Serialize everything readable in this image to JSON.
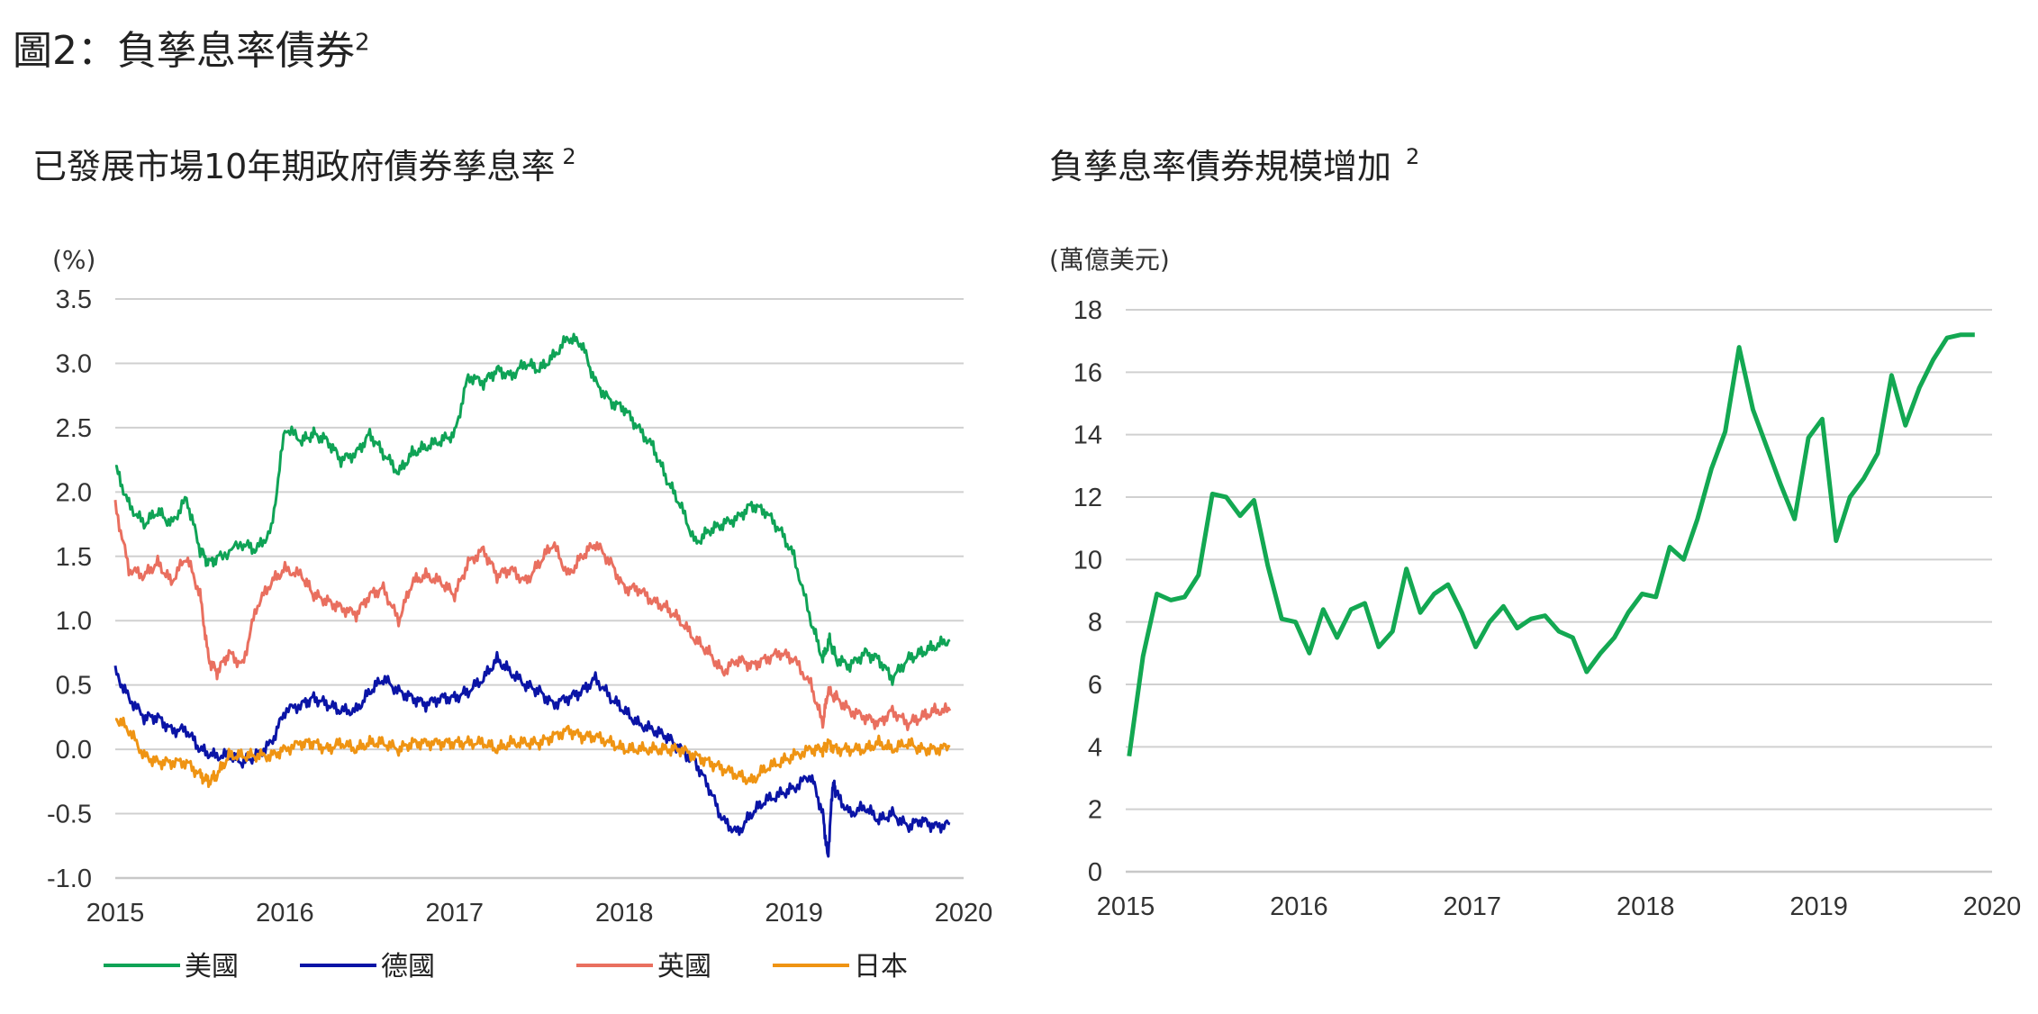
{
  "main_title": "圖2：負孳息率債券",
  "main_title_sup": "2",
  "chart_data": [
    {
      "type": "line",
      "title": "已發展市場10年期政府債券孳息率",
      "title_sup": "2",
      "unit": "(%)",
      "ylim": [
        -1.0,
        3.5
      ],
      "yticks": [
        "3.5",
        "3.0",
        "2.5",
        "2.0",
        "1.5",
        "1.0",
        "0.5",
        "0.0",
        "-0.5",
        "-1.0"
      ],
      "xlim": [
        2015,
        2020
      ],
      "xticks": [
        "2015",
        "2016",
        "2017",
        "2018",
        "2019",
        "2020"
      ],
      "grid": true,
      "legend_position": "bottom",
      "series": [
        {
          "name": "美國",
          "color": "#0fa356",
          "x": [
            2015.0,
            2015.08,
            2015.17,
            2015.25,
            2015.33,
            2015.42,
            2015.5,
            2015.55,
            2015.62,
            2015.75,
            2015.83,
            2015.92,
            2016.0,
            2016.1,
            2016.17,
            2016.25,
            2016.33,
            2016.42,
            2016.5,
            2016.58,
            2016.67,
            2016.75,
            2016.83,
            2016.92,
            2017.0,
            2017.08,
            2017.17,
            2017.25,
            2017.33,
            2017.42,
            2017.5,
            2017.58,
            2017.67,
            2017.75,
            2017.83,
            2017.92,
            2018.0,
            2018.08,
            2018.17,
            2018.25,
            2018.33,
            2018.42,
            2018.5,
            2018.58,
            2018.67,
            2018.75,
            2018.83,
            2018.92,
            2019.0,
            2019.1,
            2019.17,
            2019.21,
            2019.25,
            2019.33,
            2019.42,
            2019.5,
            2019.58,
            2019.67,
            2019.75,
            2019.83,
            2019.92
          ],
          "y": [
            2.2,
            1.9,
            1.75,
            1.85,
            1.75,
            1.95,
            1.55,
            1.45,
            1.5,
            1.6,
            1.55,
            1.7,
            2.5,
            2.4,
            2.45,
            2.4,
            2.25,
            2.3,
            2.45,
            2.3,
            2.15,
            2.3,
            2.35,
            2.4,
            2.45,
            2.9,
            2.85,
            2.95,
            2.9,
            3.0,
            2.95,
            3.05,
            3.2,
            3.15,
            2.85,
            2.7,
            2.65,
            2.5,
            2.35,
            2.1,
            1.9,
            1.6,
            1.7,
            1.75,
            1.8,
            1.9,
            1.85,
            1.7,
            1.5,
            1.0,
            0.7,
            0.85,
            0.7,
            0.65,
            0.75,
            0.7,
            0.55,
            0.7,
            0.75,
            0.8,
            0.85
          ]
        },
        {
          "name": "德國",
          "color": "#0a14a6",
          "x": [
            2015.0,
            2015.08,
            2015.17,
            2015.25,
            2015.33,
            2015.42,
            2015.5,
            2015.58,
            2015.67,
            2015.75,
            2015.83,
            2015.92,
            2016.0,
            2016.1,
            2016.17,
            2016.25,
            2016.33,
            2016.42,
            2016.5,
            2016.58,
            2016.67,
            2016.75,
            2016.83,
            2016.92,
            2017.0,
            2017.08,
            2017.17,
            2017.25,
            2017.33,
            2017.42,
            2017.5,
            2017.58,
            2017.67,
            2017.75,
            2017.83,
            2017.92,
            2018.0,
            2018.08,
            2018.17,
            2018.25,
            2018.33,
            2018.42,
            2018.5,
            2018.58,
            2018.67,
            2018.75,
            2018.83,
            2018.92,
            2019.0,
            2019.1,
            2019.17,
            2019.2,
            2019.23,
            2019.25,
            2019.33,
            2019.42,
            2019.5,
            2019.58,
            2019.67,
            2019.75,
            2019.83,
            2019.92
          ],
          "y": [
            0.6,
            0.4,
            0.25,
            0.25,
            0.15,
            0.15,
            0.0,
            -0.05,
            -0.05,
            -0.1,
            -0.05,
            0.05,
            0.3,
            0.35,
            0.4,
            0.35,
            0.3,
            0.3,
            0.45,
            0.55,
            0.45,
            0.4,
            0.35,
            0.4,
            0.4,
            0.45,
            0.55,
            0.7,
            0.6,
            0.5,
            0.45,
            0.35,
            0.4,
            0.45,
            0.55,
            0.4,
            0.3,
            0.2,
            0.15,
            0.1,
            0.0,
            -0.1,
            -0.3,
            -0.55,
            -0.65,
            -0.5,
            -0.4,
            -0.35,
            -0.3,
            -0.2,
            -0.5,
            -0.85,
            -0.25,
            -0.35,
            -0.5,
            -0.45,
            -0.55,
            -0.5,
            -0.6,
            -0.55,
            -0.6,
            -0.58
          ]
        },
        {
          "name": "英國",
          "color": "#e96f5f",
          "x": [
            2015.0,
            2015.08,
            2015.17,
            2015.25,
            2015.33,
            2015.42,
            2015.5,
            2015.55,
            2015.6,
            2015.67,
            2015.75,
            2015.83,
            2015.92,
            2016.0,
            2016.1,
            2016.17,
            2016.25,
            2016.33,
            2016.42,
            2016.5,
            2016.58,
            2016.67,
            2016.75,
            2016.83,
            2016.92,
            2017.0,
            2017.08,
            2017.17,
            2017.25,
            2017.33,
            2017.42,
            2017.5,
            2017.58,
            2017.67,
            2017.75,
            2017.83,
            2017.92,
            2018.0,
            2018.08,
            2018.17,
            2018.25,
            2018.33,
            2018.42,
            2018.5,
            2018.58,
            2018.67,
            2018.75,
            2018.83,
            2018.92,
            2019.0,
            2019.1,
            2019.17,
            2019.2,
            2019.25,
            2019.33,
            2019.42,
            2019.5,
            2019.58,
            2019.67,
            2019.75,
            2019.83,
            2019.92
          ],
          "y": [
            1.9,
            1.4,
            1.35,
            1.45,
            1.3,
            1.5,
            1.2,
            0.7,
            0.6,
            0.75,
            0.65,
            1.1,
            1.3,
            1.4,
            1.35,
            1.2,
            1.15,
            1.1,
            1.05,
            1.2,
            1.25,
            1.0,
            1.3,
            1.35,
            1.3,
            1.2,
            1.45,
            1.55,
            1.35,
            1.4,
            1.3,
            1.45,
            1.6,
            1.35,
            1.5,
            1.6,
            1.45,
            1.25,
            1.25,
            1.15,
            1.1,
            1.0,
            0.85,
            0.75,
            0.6,
            0.7,
            0.65,
            0.7,
            0.75,
            0.7,
            0.5,
            0.2,
            0.45,
            0.4,
            0.3,
            0.25,
            0.2,
            0.3,
            0.2,
            0.25,
            0.3,
            0.3
          ]
        },
        {
          "name": "日本",
          "color": "#ef9413",
          "x": [
            2015.0,
            2015.08,
            2015.17,
            2015.25,
            2015.33,
            2015.42,
            2015.5,
            2015.55,
            2015.6,
            2015.67,
            2015.75,
            2015.83,
            2015.92,
            2016.0,
            2016.1,
            2016.17,
            2016.25,
            2016.33,
            2016.42,
            2016.5,
            2016.58,
            2016.67,
            2016.75,
            2016.83,
            2016.92,
            2017.0,
            2017.08,
            2017.17,
            2017.25,
            2017.33,
            2017.42,
            2017.5,
            2017.58,
            2017.67,
            2017.75,
            2017.83,
            2017.92,
            2018.0,
            2018.08,
            2018.17,
            2018.25,
            2018.33,
            2018.42,
            2018.5,
            2018.58,
            2018.67,
            2018.75,
            2018.83,
            2018.92,
            2019.0,
            2019.1,
            2019.17,
            2019.2,
            2019.25,
            2019.33,
            2019.42,
            2019.5,
            2019.58,
            2019.67,
            2019.75,
            2019.83,
            2019.92
          ],
          "y": [
            0.25,
            0.15,
            -0.05,
            -0.1,
            -0.1,
            -0.1,
            -0.2,
            -0.25,
            -0.2,
            -0.05,
            -0.05,
            -0.05,
            -0.05,
            0.0,
            0.05,
            0.05,
            0.0,
            0.05,
            0.0,
            0.05,
            0.05,
            0.0,
            0.05,
            0.05,
            0.05,
            0.05,
            0.05,
            0.05,
            0.0,
            0.05,
            0.05,
            0.05,
            0.1,
            0.15,
            0.1,
            0.1,
            0.05,
            0.0,
            0.0,
            0.0,
            0.0,
            0.0,
            -0.05,
            -0.1,
            -0.15,
            -0.2,
            -0.25,
            -0.15,
            -0.1,
            -0.05,
            0.0,
            0.0,
            0.05,
            0.0,
            0.0,
            0.0,
            0.05,
            0.0,
            0.05,
            0.0,
            0.0,
            0.02
          ]
        }
      ]
    },
    {
      "type": "line",
      "title": "負孳息率債券規模增加",
      "title_sup": "2",
      "unit": "(萬億美元)",
      "ylim": [
        0,
        18
      ],
      "yticks": [
        "18",
        "16",
        "14",
        "12",
        "10",
        "8",
        "6",
        "4",
        "2",
        "0"
      ],
      "xlim": [
        2015,
        2020
      ],
      "xticks": [
        "2015",
        "2016",
        "2017",
        "2018",
        "2019",
        "2020"
      ],
      "grid": true,
      "series": [
        {
          "name": "",
          "color": "#13a852",
          "x": [
            2015.02,
            2015.1,
            2015.18,
            2015.26,
            2015.34,
            2015.42,
            2015.5,
            2015.58,
            2015.66,
            2015.74,
            2015.82,
            2015.9,
            2015.98,
            2016.06,
            2016.14,
            2016.22,
            2016.3,
            2016.38,
            2016.46,
            2016.54,
            2016.62,
            2016.7,
            2016.78,
            2016.86,
            2016.94,
            2017.02,
            2017.1,
            2017.18,
            2017.26,
            2017.34,
            2017.42,
            2017.5,
            2017.58,
            2017.66,
            2017.74,
            2017.82,
            2017.9,
            2017.98,
            2018.06,
            2018.14,
            2018.22,
            2018.3,
            2018.38,
            2018.46,
            2018.54,
            2018.62,
            2018.7,
            2018.78,
            2018.86,
            2018.94,
            2019.02,
            2019.1,
            2019.18,
            2019.26,
            2019.34,
            2019.42,
            2019.5,
            2019.58,
            2019.66,
            2019.74,
            2019.82,
            2019.9
          ],
          "y": [
            3.7,
            6.9,
            8.9,
            8.7,
            8.8,
            9.5,
            12.1,
            12.0,
            11.4,
            11.9,
            9.8,
            8.1,
            8.0,
            7.0,
            8.4,
            7.5,
            8.4,
            8.6,
            7.2,
            7.7,
            9.7,
            8.3,
            8.9,
            9.2,
            8.3,
            7.2,
            8.0,
            8.5,
            7.8,
            8.1,
            8.2,
            7.7,
            7.5,
            6.4,
            7.0,
            7.5,
            8.3,
            8.9,
            8.8,
            10.4,
            10.0,
            11.3,
            12.9,
            14.1,
            16.8,
            14.8,
            13.6,
            12.4,
            11.3,
            13.9,
            14.5,
            10.6,
            12.0,
            12.6,
            13.4,
            15.9,
            14.3,
            15.5,
            16.4,
            17.1,
            17.2,
            17.2
          ]
        }
      ]
    }
  ]
}
